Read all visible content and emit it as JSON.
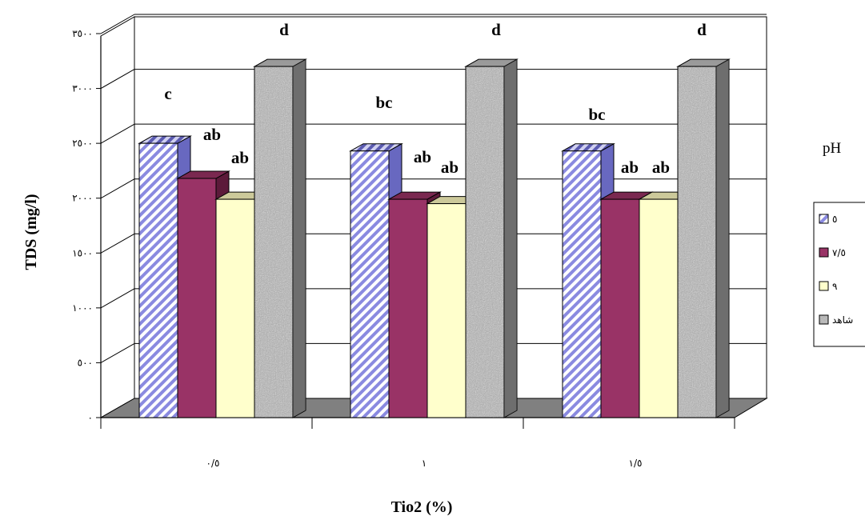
{
  "chart_data": {
    "type": "bar",
    "title": "",
    "xlabel": "Tio2 (%)",
    "ylabel": "TDS (mg/l)",
    "ylim": [
      0,
      3500
    ],
    "yticks": [
      "٠",
      "٥٠٠",
      "١٠٠٠",
      "١٥٠٠",
      "٢٠٠٠",
      "٢٥٠٠",
      "٣٠٠٠",
      "٣٥٠٠"
    ],
    "categories": [
      "٠/٥",
      "١",
      "١/٥"
    ],
    "grid": true,
    "legend_title": "pH",
    "legend_position": "right",
    "series": [
      {
        "name": "٥",
        "values": [
          2500,
          2430,
          2430
        ],
        "labels": [
          "c",
          "bc",
          "bc"
        ],
        "color": "#b8b8f0",
        "pattern": "diagonal-stripes"
      },
      {
        "name": "٧/٥",
        "values": [
          2180,
          1990,
          1990
        ],
        "labels": [
          "ab",
          "ab",
          "ab"
        ],
        "color": "#993366",
        "pattern": "solid"
      },
      {
        "name": "٩",
        "values": [
          1990,
          1950,
          1990
        ],
        "labels": [
          "ab",
          "ab",
          "ab"
        ],
        "color": "#ffffcc",
        "pattern": "solid"
      },
      {
        "name": "شاهد",
        "values": [
          3200,
          3200,
          3200
        ],
        "labels": [
          "d",
          "d",
          "d"
        ],
        "color": "#a8a8a8",
        "pattern": "granite"
      }
    ]
  }
}
